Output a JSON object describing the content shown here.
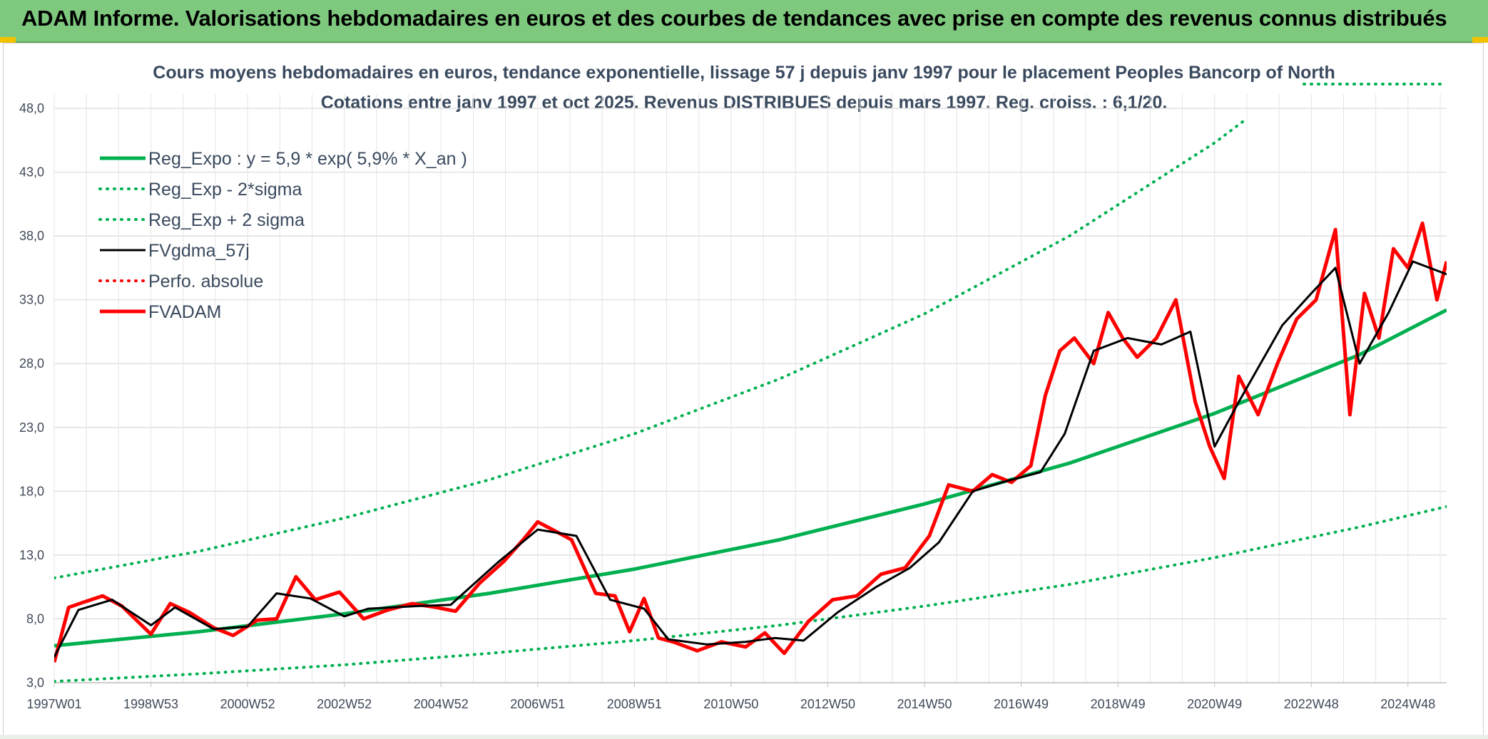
{
  "header": {
    "title": "ADAM Informe. Valorisations hebdomadaires en euros et des courbes de tendances avec prise en compte des revenus connus distribués"
  },
  "colors": {
    "header_bg": "#7fc97f",
    "regression": "#00b050",
    "smoothed": "#000000",
    "price": "#ff0000",
    "grid": "#d9d9d9"
  },
  "chart_data": {
    "type": "line",
    "title": "Cours moyens hebdomadaires en euros, tendance exponentielle, lissage 57 j depuis janv 1997 pour le placement Peoples Bancorp of North",
    "subtitle": "Cotations entre janv 1997 et oct 2025. Revenus DISTRIBUES depuis mars 1997. Reg. croiss. : 6,1/20.",
    "xlabel": "",
    "ylabel": "",
    "x_range": [
      1997.0,
      2025.8
    ],
    "ylim": [
      3.0,
      48.0
    ],
    "y_ticks": [
      "3,0",
      "8,0",
      "13,0",
      "18,0",
      "23,0",
      "28,0",
      "33,0",
      "38,0",
      "43,0",
      "48,0"
    ],
    "x_ticks": [
      {
        "label": "1997W01",
        "x": 1997.0
      },
      {
        "label": "1998W53",
        "x": 1999.0
      },
      {
        "label": "2000W52",
        "x": 2001.0
      },
      {
        "label": "2002W52",
        "x": 2003.0
      },
      {
        "label": "2004W52",
        "x": 2005.0
      },
      {
        "label": "2006W51",
        "x": 2007.0
      },
      {
        "label": "2008W51",
        "x": 2009.0
      },
      {
        "label": "2010W50",
        "x": 2011.0
      },
      {
        "label": "2012W50",
        "x": 2013.0
      },
      {
        "label": "2014W50",
        "x": 2015.0
      },
      {
        "label": "2016W49",
        "x": 2017.0
      },
      {
        "label": "2018W49",
        "x": 2019.0
      },
      {
        "label": "2020W49",
        "x": 2021.0
      },
      {
        "label": "2022W48",
        "x": 2023.0
      },
      {
        "label": "2024W48",
        "x": 2025.0
      }
    ],
    "legend_position": "top-left",
    "series": [
      {
        "name": "Reg_Expo : y = 5,9 * exp( 5,9% *  X_an )",
        "style": "solid-thick",
        "color": "#00b050",
        "x": [
          1997.0,
          2000,
          2003,
          2006,
          2009,
          2012,
          2015,
          2018,
          2021,
          2024,
          2025.8
        ],
        "values": [
          5.9,
          7.0,
          8.4,
          10.0,
          11.9,
          14.2,
          17.0,
          20.2,
          24.1,
          28.7,
          32.2
        ]
      },
      {
        "name": "Reg_Exp - 2*sigma",
        "style": "dotted",
        "color": "#00b050",
        "x": [
          1997.0,
          2000,
          2003,
          2006,
          2009,
          2012,
          2015,
          2018,
          2021,
          2024,
          2025.8
        ],
        "values": [
          3.1,
          3.7,
          4.4,
          5.3,
          6.3,
          7.5,
          9.0,
          10.7,
          12.8,
          15.2,
          16.8
        ]
      },
      {
        "name": "Reg_Exp + 2 sigma",
        "style": "dotted",
        "color": "#00b050",
        "x": [
          1997.0,
          2000,
          2003,
          2006,
          2009,
          2012,
          2015,
          2018,
          2021,
          2021.6
        ],
        "values": [
          11.2,
          13.3,
          15.9,
          18.9,
          22.5,
          26.8,
          31.9,
          38.0,
          45.3,
          47.0
        ]
      },
      {
        "name": "FVgdma_57j",
        "style": "solid",
        "color": "#000000",
        "x": [
          1997.0,
          1997.5,
          1998.2,
          1999.0,
          1999.5,
          2000.3,
          2001.0,
          2001.6,
          2002.3,
          2003.0,
          2003.5,
          2004.5,
          2005.2,
          2006.2,
          2007.0,
          2007.8,
          2008.5,
          2009.2,
          2009.7,
          2010.5,
          2011.3,
          2011.9,
          2012.5,
          2013.2,
          2014.0,
          2014.7,
          2015.3,
          2016.0,
          2016.7,
          2017.4,
          2017.9,
          2018.5,
          2019.2,
          2019.9,
          2020.5,
          2021.0,
          2021.5,
          2022.4,
          2023.0,
          2023.5,
          2024.0,
          2024.6,
          2025.1,
          2025.8
        ],
        "values": [
          5.0,
          8.7,
          9.5,
          7.5,
          8.9,
          7.2,
          7.4,
          10.0,
          9.6,
          8.2,
          8.8,
          9.0,
          9.1,
          12.5,
          15.0,
          14.5,
          9.5,
          8.8,
          6.4,
          6.0,
          6.2,
          6.5,
          6.3,
          8.5,
          10.5,
          12.0,
          14.0,
          18.0,
          18.8,
          19.5,
          22.5,
          29.0,
          30.0,
          29.5,
          30.5,
          21.5,
          25.0,
          31.0,
          33.5,
          35.5,
          28.0,
          32.0,
          36.0,
          35.0
        ]
      },
      {
        "name": "Perfo. absolue",
        "style": "dotted",
        "color": "#ff0000",
        "x": [],
        "values": []
      },
      {
        "name": "FVADAM",
        "style": "solid-thick",
        "color": "#ff0000",
        "x": [
          1997.0,
          1997.3,
          1997.6,
          1998.0,
          1998.4,
          1999.0,
          1999.4,
          1999.8,
          2000.3,
          2000.7,
          2001.2,
          2001.6,
          2002.0,
          2002.4,
          2002.9,
          2003.4,
          2003.9,
          2004.4,
          2004.9,
          2005.3,
          2005.8,
          2006.3,
          2006.7,
          2007.0,
          2007.4,
          2007.7,
          2008.2,
          2008.6,
          2008.9,
          2009.2,
          2009.5,
          2009.8,
          2010.3,
          2010.8,
          2011.3,
          2011.7,
          2012.1,
          2012.6,
          2013.1,
          2013.6,
          2014.1,
          2014.6,
          2015.1,
          2015.5,
          2016.0,
          2016.4,
          2016.8,
          2017.2,
          2017.5,
          2017.8,
          2018.1,
          2018.5,
          2018.8,
          2019.1,
          2019.4,
          2019.8,
          2020.2,
          2020.6,
          2020.9,
          2021.2,
          2021.5,
          2021.9,
          2022.3,
          2022.7,
          2023.1,
          2023.5,
          2023.8,
          2024.1,
          2024.4,
          2024.7,
          2025.0,
          2025.3,
          2025.6,
          2025.8
        ],
        "values": [
          4.6,
          8.9,
          9.3,
          9.8,
          9.0,
          6.8,
          9.2,
          8.5,
          7.3,
          6.7,
          7.9,
          8.0,
          11.3,
          9.5,
          10.1,
          8.0,
          8.7,
          9.2,
          8.9,
          8.6,
          10.8,
          12.5,
          14.2,
          15.6,
          14.8,
          14.2,
          10.0,
          9.8,
          7.0,
          9.6,
          6.5,
          6.2,
          5.5,
          6.2,
          5.8,
          6.9,
          5.3,
          7.8,
          9.5,
          9.8,
          11.5,
          12.0,
          14.5,
          18.5,
          18.0,
          19.3,
          18.7,
          20.0,
          25.5,
          29.0,
          30.0,
          28.0,
          32.0,
          30.0,
          28.5,
          30.0,
          33.0,
          25.0,
          21.5,
          19.0,
          27.0,
          24.0,
          28.0,
          31.5,
          33.0,
          38.5,
          24.0,
          33.5,
          30.0,
          37.0,
          35.5,
          39.0,
          33.0,
          36.0
        ]
      }
    ]
  }
}
